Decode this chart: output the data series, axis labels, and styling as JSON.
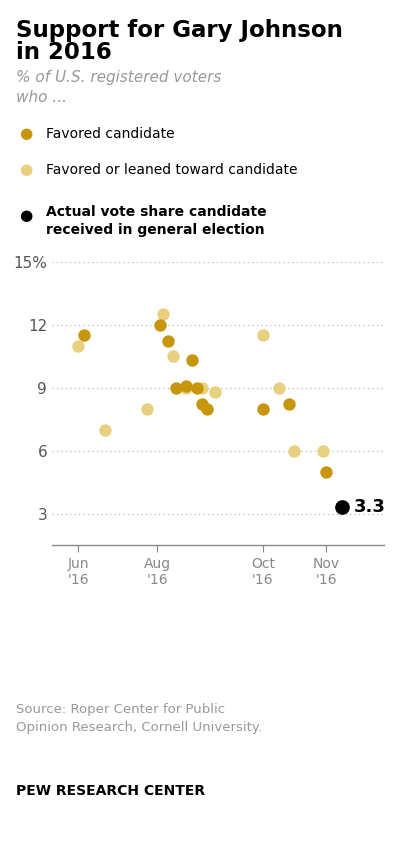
{
  "title_line1": "Support for Gary Johnson",
  "title_line2": "in 2016",
  "subtitle": "% of U.S. registered voters\nwho ...",
  "dark_gold": "#C8960C",
  "light_gold": "#E8D080",
  "black": "#000000",
  "legend1_label": "Favored candidate",
  "legend2_label": "Favored or leaned toward candidate",
  "legend3_label": "Actual vote share candidate\nreceived in general election",
  "dot_size": 80,
  "favored_x": [
    6.1,
    7.55,
    7.7,
    7.85,
    8.05,
    8.15,
    8.25,
    8.35,
    8.45,
    9.5,
    10.0,
    10.7
  ],
  "favored_y": [
    11.5,
    12.0,
    11.2,
    9.0,
    9.1,
    10.3,
    9.0,
    8.2,
    8.0,
    8.0,
    8.2,
    5.0
  ],
  "leaned_x": [
    6.0,
    6.5,
    7.3,
    7.6,
    7.8,
    8.05,
    8.35,
    8.6,
    9.5,
    9.8,
    10.1,
    10.65
  ],
  "leaned_y": [
    11.0,
    7.0,
    8.0,
    12.5,
    10.5,
    9.0,
    9.0,
    8.8,
    11.5,
    9.0,
    6.0,
    6.0
  ],
  "actual_x": [
    11.0
  ],
  "actual_y": [
    3.3
  ],
  "actual_label": "3.3",
  "yticks": [
    3,
    6,
    9,
    12,
    15
  ],
  "ylim": [
    1.5,
    16.5
  ],
  "xlim": [
    5.5,
    11.8
  ],
  "xtick_positions": [
    6.0,
    7.5,
    9.5,
    10.7
  ],
  "xtick_labels": [
    "Jun\n'16",
    "Aug\n'16",
    "Oct\n'16",
    "Nov\n'16"
  ],
  "source_text": "Source: Roper Center for Public\nOpinion Research, Cornell University.",
  "footer_text": "PEW RESEARCH CENTER",
  "grid_color": "#aaaaaa",
  "bg_color": "#ffffff"
}
